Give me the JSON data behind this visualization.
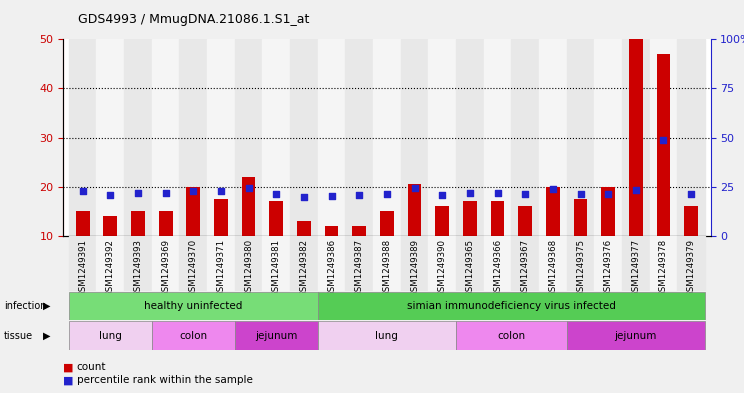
{
  "title": "GDS4993 / MmugDNA.21086.1.S1_at",
  "samples": [
    "GSM1249391",
    "GSM1249392",
    "GSM1249393",
    "GSM1249369",
    "GSM1249370",
    "GSM1249371",
    "GSM1249380",
    "GSM1249381",
    "GSM1249382",
    "GSM1249386",
    "GSM1249387",
    "GSM1249388",
    "GSM1249389",
    "GSM1249390",
    "GSM1249365",
    "GSM1249366",
    "GSM1249367",
    "GSM1249368",
    "GSM1249375",
    "GSM1249376",
    "GSM1249377",
    "GSM1249378",
    "GSM1249379"
  ],
  "counts": [
    15.0,
    14.0,
    15.0,
    15.0,
    20.0,
    17.5,
    22.0,
    17.0,
    13.0,
    12.0,
    12.0,
    15.0,
    20.5,
    16.0,
    17.0,
    17.0,
    16.0,
    20.0,
    17.5,
    20.0,
    50.0,
    47.0,
    16.0
  ],
  "percentiles": [
    23.0,
    21.0,
    22.0,
    22.0,
    23.0,
    23.0,
    24.5,
    21.5,
    19.5,
    20.5,
    21.0,
    21.5,
    24.5,
    21.0,
    22.0,
    22.0,
    21.5,
    24.0,
    21.5,
    21.5,
    23.5,
    49.0,
    21.5
  ],
  "bar_color": "#cc0000",
  "dot_color": "#2222cc",
  "ylim_left": [
    10,
    50
  ],
  "ylim_right": [
    0,
    100
  ],
  "yticks_left": [
    10,
    20,
    30,
    40,
    50
  ],
  "yticks_right": [
    0,
    25,
    50,
    75,
    100
  ],
  "ytick_labels_right": [
    "0",
    "25",
    "50",
    "75",
    "100%"
  ],
  "grid_lines": [
    20,
    30,
    40
  ],
  "infection_groups": [
    {
      "label": "healthy uninfected",
      "start": 0,
      "end": 8,
      "color": "#77dd77"
    },
    {
      "label": "simian immunodeficiency virus infected",
      "start": 9,
      "end": 22,
      "color": "#55cc55"
    }
  ],
  "tissue_groups": [
    {
      "label": "lung",
      "start": 0,
      "end": 2,
      "color": "#f0d0f0"
    },
    {
      "label": "colon",
      "start": 3,
      "end": 5,
      "color": "#ee88ee"
    },
    {
      "label": "jejunum",
      "start": 6,
      "end": 8,
      "color": "#cc44cc"
    },
    {
      "label": "lung",
      "start": 9,
      "end": 13,
      "color": "#f0d0f0"
    },
    {
      "label": "colon",
      "start": 14,
      "end": 17,
      "color": "#ee88ee"
    },
    {
      "label": "jejunum",
      "start": 18,
      "end": 22,
      "color": "#cc44cc"
    }
  ],
  "col_colors": [
    "#e8e8e8",
    "#f5f5f5"
  ],
  "fig_bg": "#f0f0f0",
  "plot_bg": "#ffffff",
  "legend_items": [
    {
      "label": "count",
      "color": "#cc0000"
    },
    {
      "label": "percentile rank within the sample",
      "color": "#2222cc"
    }
  ]
}
